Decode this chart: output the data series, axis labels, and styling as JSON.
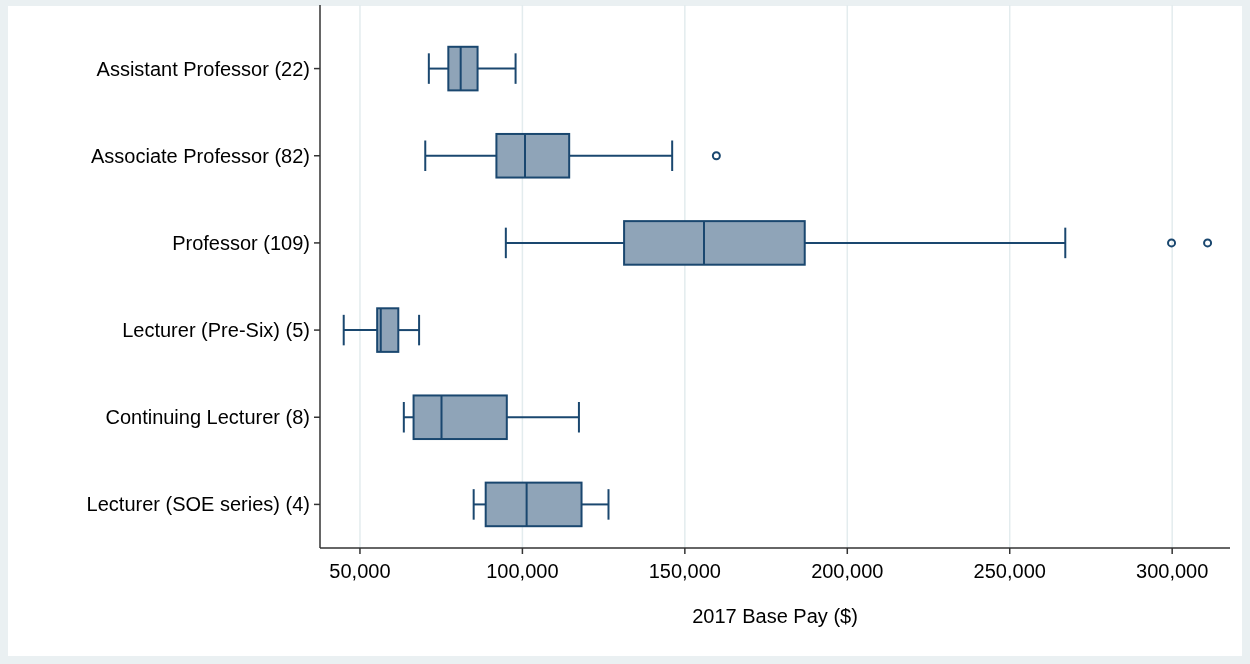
{
  "chart_data": {
    "type": "box",
    "orientation": "horizontal",
    "xlabel": "2017 Base Pay ($)",
    "categories": [
      "Assistant Professor (22)",
      "Associate Professor (82)",
      "Professor (109)",
      "Lecturer (Pre-Six) (5)",
      "Continuing Lecturer (8)",
      "Lecturer (SOE series) (4)"
    ],
    "color": "#8fa4b8",
    "boxes": [
      {
        "low": 71200,
        "q1": 77200,
        "median": 81000,
        "q3": 86200,
        "high": 97900
      },
      {
        "low": 70100,
        "q1": 92000,
        "median": 100800,
        "q3": 114400,
        "high": 146100,
        "outliers": [
          159700
        ]
      },
      {
        "low": 94900,
        "q1": 131300,
        "median": 155900,
        "q3": 186900,
        "high": 267100,
        "outliers": [
          299800,
          310900
        ]
      },
      {
        "low": 45000,
        "q1": 55300,
        "median": 56400,
        "q3": 61800,
        "high": 68200
      },
      {
        "low": 63500,
        "q1": 66500,
        "median": 75100,
        "q3": 95200,
        "high": 117400
      },
      {
        "low": 85000,
        "q1": 88700,
        "median": 101300,
        "q3": 118200,
        "high": 126500
      }
    ],
    "xlim": [
      37700,
      317800
    ],
    "xticks": [
      {
        "value": 50000,
        "label": "50,000"
      },
      {
        "value": 100000,
        "label": "100,000"
      },
      {
        "value": 150000,
        "label": "150,000"
      },
      {
        "value": 200000,
        "label": "200,000"
      },
      {
        "value": 250000,
        "label": "250,000"
      },
      {
        "value": 300000,
        "label": "300,000"
      }
    ],
    "grid": "x"
  }
}
